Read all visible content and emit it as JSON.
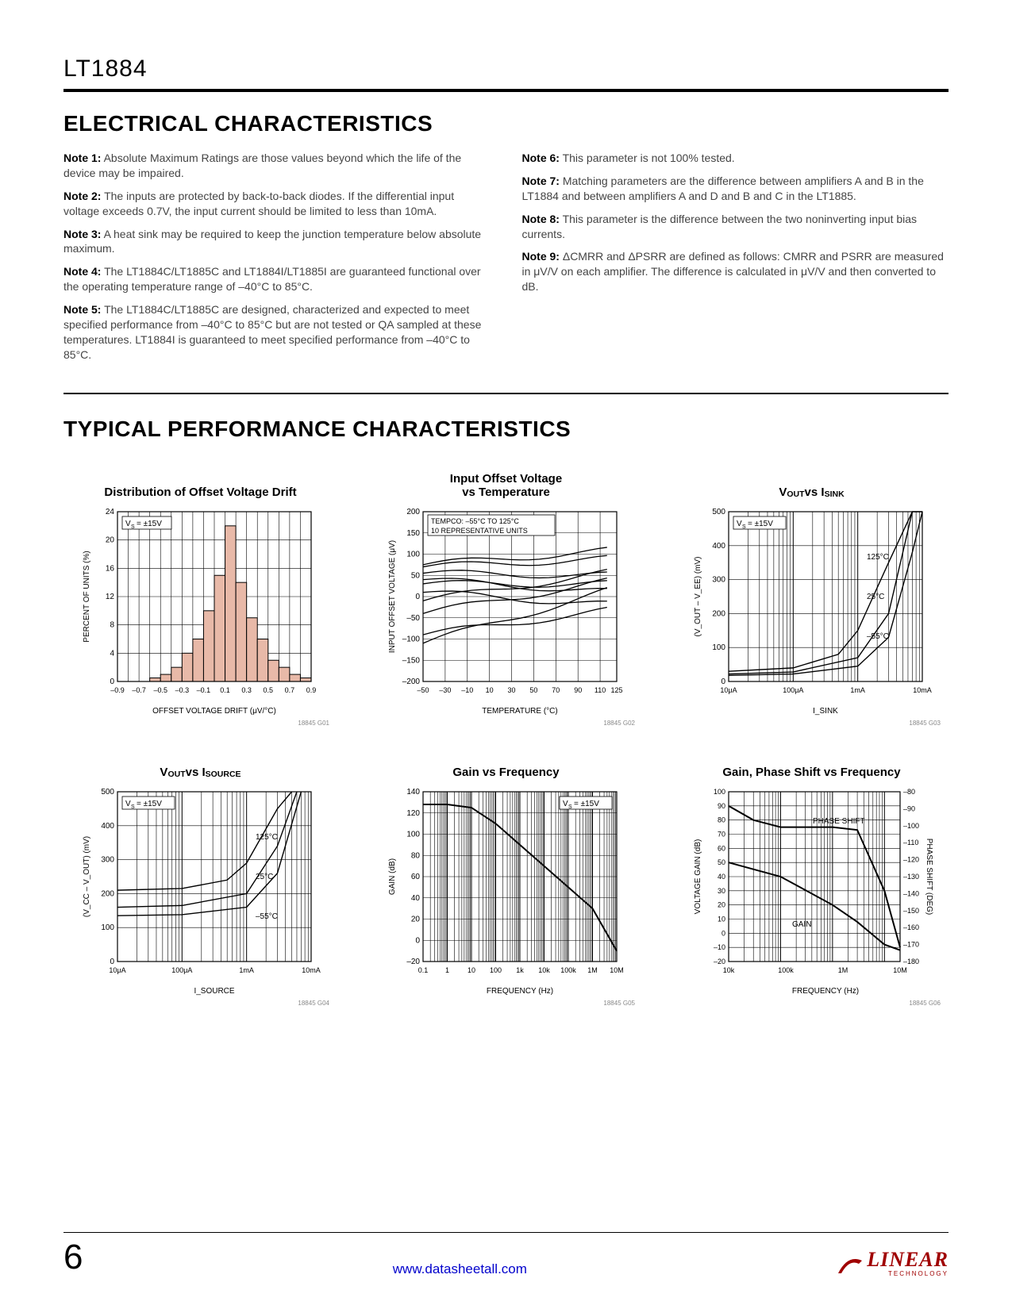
{
  "header": {
    "part_number": "LT1884"
  },
  "sections": {
    "electrical": "ELECTRICAL CHARACTERISTICS",
    "typical": "TYPICAL PERFORMANCE CHARACTERISTICS"
  },
  "notes_left": [
    {
      "label": "Note 1:",
      "text": "Absolute Maximum Ratings are those values beyond which the life of the device may be impaired."
    },
    {
      "label": "Note 2:",
      "text": "The inputs are protected by back-to-back diodes. If the differential input voltage exceeds 0.7V, the input current should be limited to less than 10mA."
    },
    {
      "label": "Note 3:",
      "text": "A heat sink may be required to keep the junction temperature below absolute maximum."
    },
    {
      "label": "Note 4:",
      "text": "The LT1884C/LT1885C and LT1884I/LT1885I are guaranteed functional over the operating temperature range of –40°C to 85°C."
    },
    {
      "label": "Note 5:",
      "text": "The LT1884C/LT1885C are designed, characterized and expected to meet specified performance from –40°C to 85°C but are not tested or QA sampled at these temperatures. LT1884I is guaranteed to meet specified performance from –40°C to 85°C."
    }
  ],
  "notes_right": [
    {
      "label": "Note 6:",
      "text": "This parameter is not 100% tested."
    },
    {
      "label": "Note 7:",
      "text": "Matching parameters are the difference between amplifiers A and B in the LT1884 and between amplifiers A and D and B and C in the LT1885."
    },
    {
      "label": "Note 8:",
      "text": "This parameter is the difference between the two noninverting input bias currents."
    },
    {
      "label": "Note 9:",
      "text": "ΔCMRR and ΔPSRR are defined as follows: CMRR and PSRR are measured in μV/V on each amplifier. The difference is calculated in μV/V and then converted to dB."
    }
  ],
  "charts": [
    {
      "id": "18845 G01",
      "title": "Distribution of Offset Voltage Drift",
      "type": "histogram",
      "xlabel": "OFFSET VOLTAGE DRIFT (μV/°C)",
      "ylabel": "PERCENT OF UNITS (%)",
      "xlim": [
        -0.9,
        0.9
      ],
      "xtick_step": 0.2,
      "xticks": [
        "–0.9",
        "–0.7",
        "–0.5",
        "–0.3",
        "–0.1",
        "0.1",
        "0.3",
        "0.5",
        "0.7",
        "0.9"
      ],
      "ylim": [
        0,
        24
      ],
      "ytick_step": 4,
      "annotation": "V_S = ±15V",
      "bar_color": "#e8b9a8",
      "bar_border": "#000000",
      "bins": [
        -0.9,
        -0.8,
        -0.7,
        -0.6,
        -0.5,
        -0.4,
        -0.3,
        -0.2,
        -0.1,
        0,
        0.1,
        0.2,
        0.3,
        0.4,
        0.5,
        0.6,
        0.7,
        0.8,
        0.9
      ],
      "values": [
        0,
        0,
        0,
        0.5,
        1,
        2,
        4,
        6,
        10,
        15,
        22,
        14,
        9,
        6,
        3,
        2,
        1,
        0.5
      ]
    },
    {
      "id": "18845 G02",
      "title": "Input Offset Voltage\nvs Temperature",
      "type": "line",
      "xlabel": "TEMPERATURE (°C)",
      "ylabel": "INPUT OFFSET VOLTAGE (μV)",
      "xlim": [
        -50,
        125
      ],
      "xticks": [
        "–50",
        "–30",
        "–10",
        "10",
        "30",
        "50",
        "70",
        "90",
        "110",
        "125"
      ],
      "ylim": [
        -200,
        200
      ],
      "ytick_step": 50,
      "annotation": "TEMPCO: –55°C TO 125°C\n10 REPRESENTATIVE UNITS",
      "line_color": "#000000",
      "series": [
        [
          [
            -50,
            75
          ],
          [
            125,
            110
          ]
        ],
        [
          [
            -50,
            70
          ],
          [
            125,
            90
          ]
        ],
        [
          [
            -50,
            55
          ],
          [
            125,
            50
          ]
        ],
        [
          [
            -50,
            40
          ],
          [
            125,
            10
          ]
        ],
        [
          [
            -50,
            30
          ],
          [
            125,
            30
          ]
        ],
        [
          [
            -50,
            10
          ],
          [
            125,
            -20
          ]
        ],
        [
          [
            -50,
            -10
          ],
          [
            125,
            60
          ]
        ],
        [
          [
            -50,
            -40
          ],
          [
            125,
            40
          ]
        ],
        [
          [
            -50,
            -90
          ],
          [
            125,
            -30
          ]
        ],
        [
          [
            -50,
            -110
          ],
          [
            125,
            20
          ]
        ]
      ]
    },
    {
      "id": "18845 G03",
      "title_html": "V<sub>OUT</sub> vs I<sub>SINK</sub>",
      "type": "semilogx",
      "xlabel": "I_SINK",
      "ylabel": "(V_OUT – V_EE) (mV)",
      "xlim_log": [
        1e-05,
        0.01
      ],
      "xticks": [
        "10μA",
        "100μA",
        "1mA",
        "10mA"
      ],
      "ylim": [
        0,
        500
      ],
      "ytick_step": 100,
      "annotation": "V_S = ±15V",
      "curve_labels": [
        "125°C",
        "25°C",
        "–55°C"
      ],
      "line_color": "#000000",
      "series": [
        {
          "label": "125°C",
          "pts": [
            [
              1e-05,
              30
            ],
            [
              0.0001,
              40
            ],
            [
              0.0005,
              80
            ],
            [
              0.001,
              150
            ],
            [
              0.003,
              350
            ],
            [
              0.007,
              600
            ]
          ]
        },
        {
          "label": "25°C",
          "pts": [
            [
              1e-05,
              22
            ],
            [
              0.0001,
              28
            ],
            [
              0.001,
              70
            ],
            [
              0.003,
              200
            ],
            [
              0.007,
              500
            ],
            [
              0.01,
              700
            ]
          ]
        },
        {
          "label": "-55°C",
          "pts": [
            [
              1e-05,
              18
            ],
            [
              0.0001,
              22
            ],
            [
              0.001,
              45
            ],
            [
              0.003,
              130
            ],
            [
              0.007,
              380
            ],
            [
              0.01,
              600
            ]
          ]
        }
      ]
    },
    {
      "id": "18845 G04",
      "title_html": "V<sub>OUT</sub> vs I<sub>SOURCE</sub>",
      "type": "semilogx",
      "xlabel": "I_SOURCE",
      "ylabel": "(V_CC – V_OUT) (mV)",
      "xlim_log": [
        1e-05,
        0.01
      ],
      "xticks": [
        "10μA",
        "100μA",
        "1mA",
        "10mA"
      ],
      "ylim": [
        0,
        500
      ],
      "ytick_step": 100,
      "annotation": "V_S = ±15V",
      "curve_labels": [
        "125°C",
        "25°C",
        "–55°C"
      ],
      "line_color": "#000000",
      "series": [
        {
          "label": "125°C",
          "pts": [
            [
              1e-05,
              210
            ],
            [
              0.0001,
              215
            ],
            [
              0.0005,
              240
            ],
            [
              0.001,
              290
            ],
            [
              0.003,
              450
            ],
            [
              0.005,
              600
            ]
          ]
        },
        {
          "label": "25°C",
          "pts": [
            [
              1e-05,
              160
            ],
            [
              0.0001,
              165
            ],
            [
              0.001,
              200
            ],
            [
              0.003,
              340
            ],
            [
              0.006,
              550
            ]
          ]
        },
        {
          "label": "-55°C",
          "pts": [
            [
              1e-05,
              135
            ],
            [
              0.0001,
              138
            ],
            [
              0.001,
              160
            ],
            [
              0.003,
              260
            ],
            [
              0.007,
              500
            ]
          ]
        }
      ]
    },
    {
      "id": "18845 G05",
      "title": "Gain vs Frequency",
      "type": "semilogx",
      "xlabel": "FREQUENCY (Hz)",
      "ylabel": "GAIN (dB)",
      "xlim_log": [
        0.1,
        10000000.0
      ],
      "xticks": [
        "0.1",
        "1",
        "10",
        "100",
        "1k",
        "10k",
        "100k",
        "1M",
        "10M"
      ],
      "ylim": [
        -20,
        140
      ],
      "ytick_step": 20,
      "annotation": "V_S = ±15V",
      "annotation_pos": "top-right",
      "line_color": "#000000",
      "line_width": 2,
      "series": [
        {
          "pts": [
            [
              0.1,
              128
            ],
            [
              1,
              128
            ],
            [
              10,
              125
            ],
            [
              100,
              110
            ],
            [
              1000.0,
              90
            ],
            [
              10000.0,
              70
            ],
            [
              100000.0,
              50
            ],
            [
              1000000.0,
              30
            ],
            [
              10000000.0,
              -10
            ]
          ]
        }
      ]
    },
    {
      "id": "18845 G06",
      "title": "Gain, Phase Shift vs Frequency",
      "type": "semilogx-dual",
      "xlabel": "FREQUENCY (Hz)",
      "ylabel": "VOLTAGE GAIN (dB)",
      "ylabel2": "PHASE SHIFT (DEG)",
      "xlim_log": [
        10000.0,
        20000000.0
      ],
      "xticks": [
        "10k",
        "100k",
        "1M",
        "10M"
      ],
      "ylim": [
        -20,
        100
      ],
      "ytick_step": 10,
      "ylim2": [
        -180,
        -80
      ],
      "ytick2_step": 10,
      "line_color": "#000000",
      "line_width": 2,
      "curve_labels": [
        "PHASE SHIFT",
        "GAIN"
      ],
      "series": [
        {
          "label": "PHASE",
          "pts": [
            [
              10000.0,
              90
            ],
            [
              30000.0,
              80
            ],
            [
              100000.0,
              75
            ],
            [
              300000.0,
              75
            ],
            [
              1000000.0,
              75
            ],
            [
              3000000.0,
              73
            ],
            [
              10000000.0,
              30
            ],
            [
              20000000.0,
              -10
            ]
          ]
        },
        {
          "label": "GAIN",
          "pts": [
            [
              10000.0,
              50
            ],
            [
              100000.0,
              40
            ],
            [
              1000000.0,
              20
            ],
            [
              3000000.0,
              8
            ],
            [
              10000000.0,
              -8
            ],
            [
              20000000.0,
              -12
            ]
          ]
        }
      ]
    }
  ],
  "footer": {
    "page": "6",
    "link": "www.datasheetall.com",
    "logo": "LINEAR",
    "logo_sub": "TECHNOLOGY",
    "logo_color": "#a00000"
  },
  "style": {
    "grid_color": "#000000",
    "grid_width": 0.6,
    "axis_width": 1.2,
    "tick_fontsize": 10,
    "label_fontsize": 10,
    "title_fontsize": 15,
    "bg": "#ffffff"
  }
}
